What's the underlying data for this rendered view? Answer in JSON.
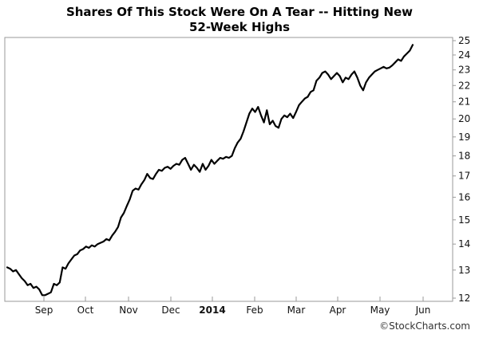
{
  "chart_data": {
    "type": "line",
    "title_lines": [
      "Shares Of This Stock Were On A Tear -- Hitting New",
      "52-Week Highs"
    ],
    "watermark": "©StockCharts.com",
    "x_ticks": [
      {
        "label": "Sep",
        "bold": false
      },
      {
        "label": "Oct",
        "bold": false
      },
      {
        "label": "Nov",
        "bold": false
      },
      {
        "label": "Dec",
        "bold": false
      },
      {
        "label": "2014",
        "bold": true
      },
      {
        "label": "Feb",
        "bold": false
      },
      {
        "label": "Mar",
        "bold": false
      },
      {
        "label": "Apr",
        "bold": false
      },
      {
        "label": "May",
        "bold": false
      },
      {
        "label": "Jun",
        "bold": false
      }
    ],
    "y_ticks": [
      12,
      13,
      14,
      15,
      16,
      17,
      18,
      19,
      20,
      21,
      22,
      23,
      24,
      25
    ],
    "y_scale": "log",
    "ylim": [
      12,
      25
    ],
    "y_axis_position": "right",
    "grid": false,
    "series": [
      {
        "color": "#000000",
        "values": [
          13.1,
          13.05,
          12.95,
          13.0,
          12.85,
          12.7,
          12.6,
          12.45,
          12.5,
          12.35,
          12.4,
          12.3,
          12.1,
          12.1,
          12.15,
          12.2,
          12.5,
          12.45,
          12.55,
          13.1,
          13.05,
          13.25,
          13.4,
          13.55,
          13.6,
          13.75,
          13.8,
          13.9,
          13.85,
          13.95,
          13.9,
          14.0,
          14.05,
          14.1,
          14.2,
          14.15,
          14.35,
          14.5,
          14.7,
          15.1,
          15.3,
          15.6,
          15.9,
          16.3,
          16.4,
          16.35,
          16.6,
          16.8,
          17.1,
          16.9,
          16.85,
          17.1,
          17.3,
          17.25,
          17.4,
          17.45,
          17.35,
          17.5,
          17.6,
          17.55,
          17.8,
          17.9,
          17.6,
          17.3,
          17.55,
          17.4,
          17.2,
          17.6,
          17.3,
          17.5,
          17.8,
          17.6,
          17.75,
          17.9,
          17.85,
          17.95,
          17.9,
          18.0,
          18.4,
          18.7,
          18.9,
          19.3,
          19.8,
          20.3,
          20.6,
          20.4,
          20.7,
          20.2,
          19.8,
          20.5,
          19.7,
          19.9,
          19.6,
          19.5,
          20.0,
          20.2,
          20.1,
          20.3,
          20.05,
          20.4,
          20.8,
          21.0,
          21.2,
          21.3,
          21.6,
          21.7,
          22.3,
          22.5,
          22.8,
          22.9,
          22.7,
          22.4,
          22.6,
          22.8,
          22.6,
          22.2,
          22.5,
          22.4,
          22.7,
          22.9,
          22.5,
          22.0,
          21.7,
          22.2,
          22.5,
          22.7,
          22.9,
          23.0,
          23.1,
          23.2,
          23.1,
          23.15,
          23.3,
          23.5,
          23.7,
          23.6,
          23.9,
          24.1,
          24.3,
          24.7
        ]
      }
    ]
  }
}
